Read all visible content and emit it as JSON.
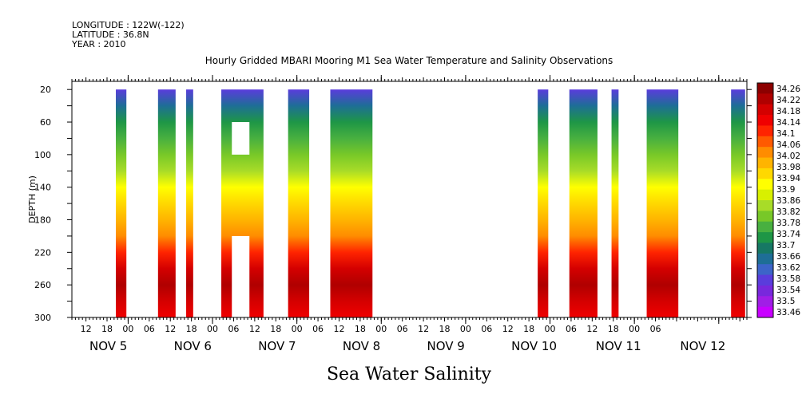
{
  "header": {
    "longitude": "LONGITUDE : 122W(-122)",
    "latitude": "LATITUDE : 36.8N",
    "year": "YEAR : 2010"
  },
  "chart_data": {
    "type": "heatmap",
    "title": "Hourly Gridded MBARI Mooring M1 Sea Water Temperature and Salinity Observations",
    "bottom_title": "Sea Water Salinity",
    "ylabel": "DEPTH (m)",
    "ylim": [
      300,
      0
    ],
    "y_ticks": [
      20,
      60,
      100,
      140,
      180,
      220,
      260,
      300
    ],
    "x_hour_ticks": [
      "12",
      "18",
      "00",
      "06",
      "12",
      "18",
      "00",
      "06",
      "12",
      "18",
      "00",
      "06",
      "12",
      "18",
      "00",
      "06",
      "12",
      "18",
      "00",
      "06",
      "12",
      "18",
      "00",
      "06",
      "12",
      "18",
      "00",
      "06"
    ],
    "x_day_labels": [
      "NOV  5",
      "NOV  6",
      "NOV  7",
      "NOV  8",
      "NOV  9",
      "NOV 10",
      "NOV 11",
      "NOV 12"
    ],
    "xlim_hours": [
      8,
      200
    ],
    "legend_values": [
      "34.26",
      "34.22",
      "34.18",
      "34.14",
      "34.1",
      "34.06",
      "34.02",
      "33.98",
      "33.94",
      "33.9",
      "33.86",
      "33.82",
      "33.78",
      "33.74",
      "33.7",
      "33.66",
      "33.62",
      "33.58",
      "33.54",
      "33.5",
      "33.46"
    ],
    "legend_colors": [
      "#8c0000",
      "#b00000",
      "#d40000",
      "#f00000",
      "#ff2400",
      "#ff5a00",
      "#ff8c00",
      "#ffb400",
      "#ffd800",
      "#ffff00",
      "#d8f000",
      "#a8dc28",
      "#78c828",
      "#48b040",
      "#1e9646",
      "#167864",
      "#1e6e96",
      "#3c64c8",
      "#5a3cdc",
      "#7828dc",
      "#a01ee6",
      "#c800ff"
    ],
    "data_columns": [
      {
        "start_hour": 20.5,
        "end_hour": 23.5
      },
      {
        "start_hour": 32.5,
        "end_hour": 37.5
      },
      {
        "start_hour": 40.5,
        "end_hour": 42.5
      },
      {
        "start_hour": 50.5,
        "end_hour": 62.5
      },
      {
        "start_hour": 69.5,
        "end_hour": 75.5
      },
      {
        "start_hour": 81.5,
        "end_hour": 93.5
      },
      {
        "start_hour": 140.5,
        "end_hour": 143.5
      },
      {
        "start_hour": 149.5,
        "end_hour": 157.5
      },
      {
        "start_hour": 161.5,
        "end_hour": 163.5
      },
      {
        "start_hour": 171.5,
        "end_hour": 180.5
      },
      {
        "start_hour": 195.5,
        "end_hour": 199.5
      }
    ],
    "gaps": [
      {
        "start_hour": 53.5,
        "end_hour": 58.5,
        "depth_top": 60,
        "depth_bottom": 100
      },
      {
        "start_hour": 53.5,
        "end_hour": 58.5,
        "depth_top": 200,
        "depth_bottom": 300
      }
    ],
    "salinity_profile": [
      {
        "depth": 20,
        "value": 33.58
      },
      {
        "depth": 40,
        "value": 33.66
      },
      {
        "depth": 60,
        "value": 33.72
      },
      {
        "depth": 80,
        "value": 33.78
      },
      {
        "depth": 100,
        "value": 33.8
      },
      {
        "depth": 120,
        "value": 33.86
      },
      {
        "depth": 140,
        "value": 33.92
      },
      {
        "depth": 160,
        "value": 33.96
      },
      {
        "depth": 180,
        "value": 33.98
      },
      {
        "depth": 200,
        "value": 34.02
      },
      {
        "depth": 220,
        "value": 34.1
      },
      {
        "depth": 240,
        "value": 34.18
      },
      {
        "depth": 260,
        "value": 34.2
      },
      {
        "depth": 280,
        "value": 34.18
      },
      {
        "depth": 300,
        "value": 34.14
      }
    ]
  }
}
